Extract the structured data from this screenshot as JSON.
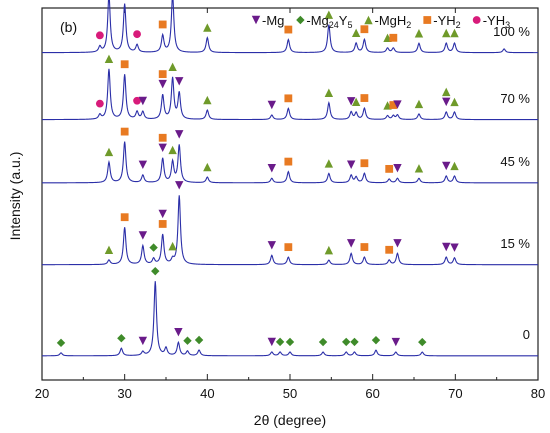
{
  "panel_label": "(b)",
  "legend": [
    {
      "marker": "triangle-down",
      "color": "#6a1b8a",
      "label": "-Mg",
      "sub": "",
      "tail": ""
    },
    {
      "marker": "diamond",
      "color": "#3f8b2a",
      "label": "-Mg",
      "sub": "24",
      "tail": "Y",
      "sub2": "5"
    },
    {
      "marker": "triangle-up",
      "color": "#6f9a2a",
      "label": "-MgH",
      "sub": "2",
      "tail": ""
    },
    {
      "marker": "square",
      "color": "#e87a22",
      "label": "-YH",
      "sub": "2",
      "tail": ""
    },
    {
      "marker": "circle",
      "color": "#d81b7a",
      "label": "-YH",
      "sub": "3",
      "tail": ""
    }
  ],
  "colors": {
    "line": "#2b2fa8",
    "axis": "#222222"
  },
  "chart_data": {
    "type": "line",
    "xlabel": "2θ (degree)",
    "ylabel": "Intensity (a.u.)",
    "xlim": [
      20,
      80
    ],
    "xticks": [
      20,
      30,
      40,
      50,
      60,
      70,
      80
    ],
    "grid": false,
    "series": [
      {
        "name": "100 %",
        "offset": 0.88,
        "peaks": [
          [
            27.0,
            0.015
          ],
          [
            28.1,
            0.155
          ],
          [
            30.0,
            0.13
          ],
          [
            31.5,
            0.02
          ],
          [
            34.6,
            0.045
          ],
          [
            35.8,
            0.155
          ],
          [
            40.0,
            0.04
          ],
          [
            49.8,
            0.035
          ],
          [
            54.7,
            0.075
          ],
          [
            58.0,
            0.025
          ],
          [
            59.0,
            0.035
          ],
          [
            61.8,
            0.012
          ],
          [
            62.5,
            0.012
          ],
          [
            65.6,
            0.025
          ],
          [
            68.9,
            0.025
          ],
          [
            69.9,
            0.025
          ],
          [
            75.9,
            0.01
          ]
        ],
        "markers": [
          {
            "type": "triangle-up",
            "x": 28.1
          },
          {
            "type": "square",
            "x": 30.0
          },
          {
            "type": "circle",
            "x": 27.0
          },
          {
            "type": "circle",
            "x": 31.5
          },
          {
            "type": "square",
            "x": 34.6
          },
          {
            "type": "triangle-up",
            "x": 35.8
          },
          {
            "type": "triangle-up",
            "x": 40.0
          },
          {
            "type": "square",
            "x": 49.8
          },
          {
            "type": "triangle-up",
            "x": 54.7
          },
          {
            "type": "triangle-up",
            "x": 58.0
          },
          {
            "type": "square",
            "x": 59.0
          },
          {
            "type": "triangle-up",
            "x": 61.8
          },
          {
            "type": "square",
            "x": 62.5
          },
          {
            "type": "triangle-up",
            "x": 65.6
          },
          {
            "type": "triangle-up",
            "x": 68.9
          },
          {
            "type": "triangle-up",
            "x": 69.9
          }
        ]
      },
      {
        "name": "70 %",
        "offset": 0.7,
        "peaks": [
          [
            27.0,
            0.012
          ],
          [
            28.1,
            0.135
          ],
          [
            30.0,
            0.12
          ],
          [
            31.5,
            0.02
          ],
          [
            32.2,
            0.02
          ],
          [
            34.6,
            0.065
          ],
          [
            35.8,
            0.11
          ],
          [
            36.6,
            0.07
          ],
          [
            40.0,
            0.025
          ],
          [
            47.8,
            0.012
          ],
          [
            49.8,
            0.03
          ],
          [
            54.7,
            0.045
          ],
          [
            57.4,
            0.02
          ],
          [
            58.0,
            0.018
          ],
          [
            59.0,
            0.03
          ],
          [
            61.8,
            0.01
          ],
          [
            62.5,
            0.01
          ],
          [
            63.0,
            0.012
          ],
          [
            65.6,
            0.015
          ],
          [
            68.9,
            0.02
          ],
          [
            69.9,
            0.02
          ]
        ],
        "markers": [
          {
            "type": "triangle-up",
            "x": 28.1
          },
          {
            "type": "square",
            "x": 30.0
          },
          {
            "type": "circle",
            "x": 27.0
          },
          {
            "type": "circle",
            "x": 31.5
          },
          {
            "type": "triangle-down",
            "x": 32.2
          },
          {
            "type": "triangle-down",
            "x": 34.6
          },
          {
            "type": "square",
            "x": 34.6
          },
          {
            "type": "triangle-up",
            "x": 35.8
          },
          {
            "type": "triangle-down",
            "x": 36.6
          },
          {
            "type": "triangle-up",
            "x": 40.0
          },
          {
            "type": "triangle-down",
            "x": 47.8
          },
          {
            "type": "square",
            "x": 49.8
          },
          {
            "type": "triangle-up",
            "x": 54.7
          },
          {
            "type": "triangle-down",
            "x": 57.4
          },
          {
            "type": "triangle-up",
            "x": 58.0
          },
          {
            "type": "square",
            "x": 59.0
          },
          {
            "type": "triangle-up",
            "x": 61.8
          },
          {
            "type": "square",
            "x": 62.5
          },
          {
            "type": "triangle-down",
            "x": 63.0
          },
          {
            "type": "triangle-up",
            "x": 65.6
          },
          {
            "type": "triangle-down",
            "x": 68.9
          },
          {
            "type": "triangle-up",
            "x": 68.9
          },
          {
            "type": "triangle-up",
            "x": 69.9
          }
        ]
      },
      {
        "name": "45 %",
        "offset": 0.53,
        "peaks": [
          [
            28.1,
            0.055
          ],
          [
            30.0,
            0.11
          ],
          [
            32.2,
            0.02
          ],
          [
            34.6,
            0.065
          ],
          [
            35.8,
            0.055
          ],
          [
            36.6,
            0.1
          ],
          [
            40.0,
            0.015
          ],
          [
            47.8,
            0.012
          ],
          [
            49.8,
            0.03
          ],
          [
            54.7,
            0.025
          ],
          [
            57.4,
            0.02
          ],
          [
            58.0,
            0.015
          ],
          [
            59.0,
            0.025
          ],
          [
            62.0,
            0.01
          ],
          [
            63.0,
            0.012
          ],
          [
            65.6,
            0.012
          ],
          [
            68.9,
            0.018
          ],
          [
            69.9,
            0.018
          ]
        ],
        "markers": [
          {
            "type": "triangle-up",
            "x": 28.1
          },
          {
            "type": "square",
            "x": 30.0
          },
          {
            "type": "triangle-down",
            "x": 32.2
          },
          {
            "type": "triangle-down",
            "x": 34.6
          },
          {
            "type": "square",
            "x": 34.6
          },
          {
            "type": "triangle-up",
            "x": 35.8
          },
          {
            "type": "triangle-down",
            "x": 36.6
          },
          {
            "type": "triangle-up",
            "x": 40.0
          },
          {
            "type": "triangle-down",
            "x": 47.8
          },
          {
            "type": "square",
            "x": 49.8
          },
          {
            "type": "triangle-up",
            "x": 54.7
          },
          {
            "type": "triangle-down",
            "x": 57.4
          },
          {
            "type": "square",
            "x": 59.0
          },
          {
            "type": "square",
            "x": 62.0
          },
          {
            "type": "triangle-down",
            "x": 63.0
          },
          {
            "type": "triangle-up",
            "x": 65.6
          },
          {
            "type": "triangle-down",
            "x": 68.9
          },
          {
            "type": "triangle-up",
            "x": 69.9
          }
        ]
      },
      {
        "name": "15 %",
        "offset": 0.31,
        "peaks": [
          [
            28.1,
            0.012
          ],
          [
            30.0,
            0.1
          ],
          [
            32.2,
            0.05
          ],
          [
            33.5,
            0.015
          ],
          [
            34.6,
            0.08
          ],
          [
            35.8,
            0.012
          ],
          [
            36.6,
            0.185
          ],
          [
            47.8,
            0.025
          ],
          [
            49.8,
            0.02
          ],
          [
            54.7,
            0.012
          ],
          [
            57.4,
            0.03
          ],
          [
            59.0,
            0.02
          ],
          [
            62.0,
            0.012
          ],
          [
            63.0,
            0.03
          ],
          [
            68.9,
            0.02
          ],
          [
            69.9,
            0.018
          ]
        ],
        "markers": [
          {
            "type": "triangle-up",
            "x": 28.1
          },
          {
            "type": "square",
            "x": 30.0
          },
          {
            "type": "triangle-down",
            "x": 32.2
          },
          {
            "type": "square",
            "x": 34.6
          },
          {
            "type": "triangle-down",
            "x": 34.6
          },
          {
            "type": "diamond",
            "x": 33.5
          },
          {
            "type": "triangle-up",
            "x": 35.8
          },
          {
            "type": "triangle-down",
            "x": 36.6
          },
          {
            "type": "triangle-down",
            "x": 47.8
          },
          {
            "type": "square",
            "x": 49.8
          },
          {
            "type": "triangle-up",
            "x": 54.7
          },
          {
            "type": "triangle-down",
            "x": 57.4
          },
          {
            "type": "square",
            "x": 59.0
          },
          {
            "type": "square",
            "x": 62.0
          },
          {
            "type": "triangle-down",
            "x": 63.0
          },
          {
            "type": "triangle-down",
            "x": 68.9
          },
          {
            "type": "triangle-down",
            "x": 69.9
          }
        ]
      },
      {
        "name": "0",
        "offset": 0.065,
        "peaks": [
          [
            22.3,
            0.008
          ],
          [
            29.6,
            0.02
          ],
          [
            32.2,
            0.01
          ],
          [
            33.7,
            0.2
          ],
          [
            35.0,
            0.02
          ],
          [
            36.5,
            0.035
          ],
          [
            37.6,
            0.012
          ],
          [
            39.0,
            0.015
          ],
          [
            47.8,
            0.01
          ],
          [
            48.8,
            0.01
          ],
          [
            50.0,
            0.01
          ],
          [
            54.0,
            0.01
          ],
          [
            56.8,
            0.01
          ],
          [
            57.8,
            0.01
          ],
          [
            60.4,
            0.015
          ],
          [
            62.8,
            0.01
          ],
          [
            66.0,
            0.01
          ]
        ],
        "markers": [
          {
            "type": "diamond",
            "x": 22.3
          },
          {
            "type": "diamond",
            "x": 29.6
          },
          {
            "type": "triangle-down",
            "x": 32.2
          },
          {
            "type": "diamond",
            "x": 33.7
          },
          {
            "type": "triangle-down",
            "x": 36.5
          },
          {
            "type": "diamond",
            "x": 37.6
          },
          {
            "type": "diamond",
            "x": 39.0
          },
          {
            "type": "triangle-down",
            "x": 47.8
          },
          {
            "type": "diamond",
            "x": 48.8
          },
          {
            "type": "diamond",
            "x": 50.0
          },
          {
            "type": "diamond",
            "x": 54.0
          },
          {
            "type": "diamond",
            "x": 56.8
          },
          {
            "type": "diamond",
            "x": 57.8
          },
          {
            "type": "diamond",
            "x": 60.4
          },
          {
            "type": "triangle-down",
            "x": 62.8
          },
          {
            "type": "diamond",
            "x": 66.0
          }
        ]
      }
    ]
  }
}
